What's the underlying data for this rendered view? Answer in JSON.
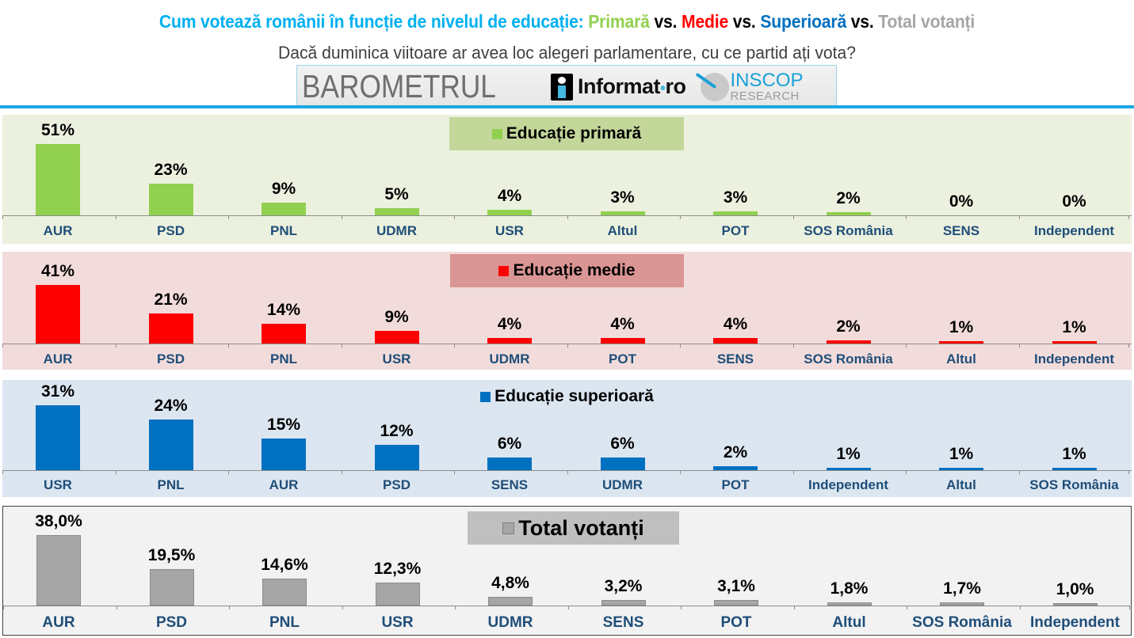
{
  "header": {
    "title_prefix": "Cum votează românii în funcție de nivelul de educație: ",
    "title_primara": "Primară",
    "title_vs1": " vs. ",
    "title_medie": "Medie",
    "title_vs2": " vs. ",
    "title_superioara": "Superioară",
    "title_vs3": " vs. ",
    "title_total": "Total votanți",
    "subtitle": "Dacă duminica viitoare ar avea loc alegeri parlamentare, cu ce partid ați vota?",
    "colors": {
      "title": "#00b0f0",
      "primara": "#92d050",
      "medie": "#ff0000",
      "superioara": "#0070c0",
      "total": "#a6a6a6"
    }
  },
  "logos": {
    "barometru": "BAROMETRUL",
    "informat": "Informat",
    "informat_sep": "•",
    "informat_tld": "ro",
    "inscop_top": "INSCOP",
    "inscop_bottom": "RESEARCH"
  },
  "chart_data": [
    {
      "type": "bar",
      "title": "Educație primară",
      "color": "#92d050",
      "panel_bg": "#ebf1de",
      "legend_bg": "#c4d79b",
      "categories": [
        "AUR",
        "PSD",
        "PNL",
        "UDMR",
        "USR",
        "Altul",
        "POT",
        "SOS România",
        "SENS",
        "Independent"
      ],
      "values": [
        51,
        23,
        9,
        5,
        4,
        3,
        3,
        2,
        0,
        0
      ],
      "labels": [
        "51%",
        "23%",
        "9%",
        "5%",
        "4%",
        "3%",
        "3%",
        "2%",
        "0%",
        "0%"
      ],
      "xlabel": "",
      "ylabel": "",
      "unit": "%"
    },
    {
      "type": "bar",
      "title": "Educație medie",
      "color": "#ff0000",
      "panel_bg": "#f2dcdb",
      "legend_bg": "#da9694",
      "categories": [
        "AUR",
        "PSD",
        "PNL",
        "USR",
        "UDMR",
        "POT",
        "SENS",
        "SOS România",
        "Altul",
        "Independent"
      ],
      "values": [
        41,
        21,
        14,
        9,
        4,
        4,
        4,
        2,
        1,
        1
      ],
      "labels": [
        "41%",
        "21%",
        "14%",
        "9%",
        "4%",
        "4%",
        "4%",
        "2%",
        "1%",
        "1%"
      ],
      "xlabel": "",
      "ylabel": "",
      "unit": "%"
    },
    {
      "type": "bar",
      "title": "Educație superioară",
      "color": "#0070c0",
      "panel_bg": "#dce6f1",
      "legend_bg": "#dce6f1",
      "categories": [
        "USR",
        "PNL",
        "AUR",
        "PSD",
        "SENS",
        "UDMR",
        "POT",
        "Independent",
        "Altul",
        "SOS România"
      ],
      "values": [
        31,
        24,
        15,
        12,
        6,
        6,
        2,
        1,
        1,
        1
      ],
      "labels": [
        "31%",
        "24%",
        "15%",
        "12%",
        "6%",
        "6%",
        "2%",
        "1%",
        "1%",
        "1%"
      ],
      "xlabel": "",
      "ylabel": "",
      "unit": "%"
    },
    {
      "type": "bar",
      "title": "Total votanți",
      "color": "#a6a6a6",
      "panel_bg": "#f2f2f2",
      "legend_bg": "#bfbfbf",
      "categories": [
        "AUR",
        "PSD",
        "PNL",
        "USR",
        "UDMR",
        "SENS",
        "POT",
        "Altul",
        "SOS România",
        "Independent"
      ],
      "values": [
        38.0,
        19.5,
        14.6,
        12.3,
        4.8,
        3.2,
        3.1,
        1.8,
        1.7,
        1.0
      ],
      "labels": [
        "38,0%",
        "19,5%",
        "14,6%",
        "12,3%",
        "4,8%",
        "3,2%",
        "3,1%",
        "1,8%",
        "1,7%",
        "1,0%"
      ],
      "xlabel": "",
      "ylabel": "",
      "unit": "%"
    }
  ]
}
